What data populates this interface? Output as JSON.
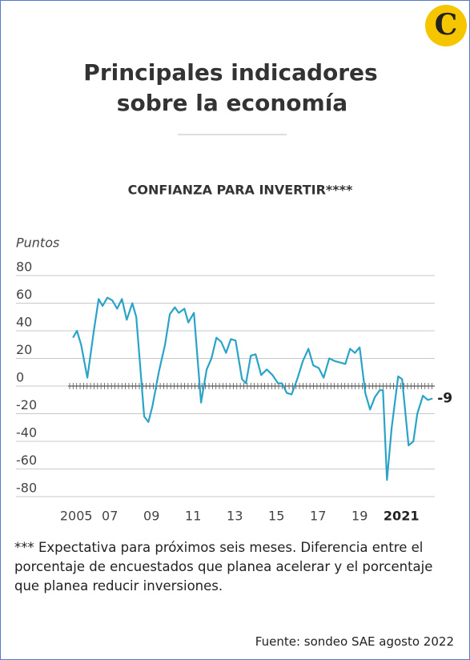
{
  "logo": "C",
  "header": {
    "title": [
      "Principales indicadores",
      "sobre la economía"
    ]
  },
  "chart_data": {
    "type": "line",
    "title": "CONFIANZA PARA INVERTIR****",
    "y_label": "Puntos",
    "x": [
      2005.23,
      2005.42,
      2005.62,
      2005.92,
      2006.23,
      2006.46,
      2006.65,
      2006.88,
      2007.12,
      2007.35,
      2007.58,
      2007.81,
      2008.08,
      2008.27,
      2008.65,
      2008.85,
      2009.04,
      2009.35,
      2009.65,
      2009.88,
      2010.12,
      2010.31,
      2010.58,
      2010.77,
      2011.04,
      2011.38,
      2011.65,
      2011.88,
      2012.12,
      2012.35,
      2012.58,
      2012.81,
      2013.04,
      2013.35,
      2013.54,
      2013.77,
      2014.0,
      2014.27,
      2014.54,
      2014.81,
      2015.08,
      2015.27,
      2015.5,
      2015.73,
      2016.0,
      2016.27,
      2016.54,
      2016.77,
      2017.04,
      2017.27,
      2017.54,
      2017.81,
      2018.08,
      2018.31,
      2018.54,
      2018.77,
      2019.0,
      2019.27,
      2019.5,
      2019.73,
      2019.96,
      2020.12,
      2020.31,
      2020.54,
      2020.85,
      2021.04,
      2021.35,
      2021.58,
      2021.77,
      2022.04,
      2022.27,
      2022.5
    ],
    "series": [
      {
        "name": "Confianza para invertir",
        "color": "#2aa3c9",
        "values": [
          35,
          40,
          30,
          6,
          40,
          63,
          58,
          64,
          62,
          56,
          63,
          48,
          60,
          50,
          -22,
          -26,
          -15,
          10,
          30,
          52,
          57,
          53,
          56,
          46,
          53,
          -12,
          12,
          20,
          35,
          32,
          24,
          34,
          33,
          5,
          2,
          22,
          23,
          8,
          12,
          8,
          2,
          2,
          -5,
          -6,
          5,
          18,
          27,
          15,
          13,
          6,
          20,
          18,
          17,
          16,
          27,
          24,
          28,
          -5,
          -17,
          -8,
          -3,
          -3,
          -68,
          -30,
          7,
          5,
          -43,
          -40,
          -20,
          -7,
          -10,
          -9
        ]
      }
    ],
    "xlim": [
      2004.8,
      2022.8
    ],
    "xticks": [
      {
        "value": 2005,
        "label": "2005"
      },
      {
        "value": 2007,
        "label": "07"
      },
      {
        "value": 2009,
        "label": "09"
      },
      {
        "value": 2011,
        "label": "11"
      },
      {
        "value": 2013,
        "label": "13"
      },
      {
        "value": 2015,
        "label": "15"
      },
      {
        "value": 2017,
        "label": "17"
      },
      {
        "value": 2019,
        "label": "19"
      },
      {
        "value": 2021,
        "label": "2021"
      }
    ],
    "ylim": [
      -80,
      80
    ],
    "yticks": [
      -80,
      -60,
      -40,
      -20,
      0,
      20,
      40,
      60,
      80
    ],
    "grid": true
  },
  "footnote": "*** Expectativa para próximos seis meses. Diferencia entre el porcentaje de encuestados que planea acelerar y el porcentaje que planea reducir inversiones.",
  "source": "Fuente: sondeo SAE agosto 2022"
}
